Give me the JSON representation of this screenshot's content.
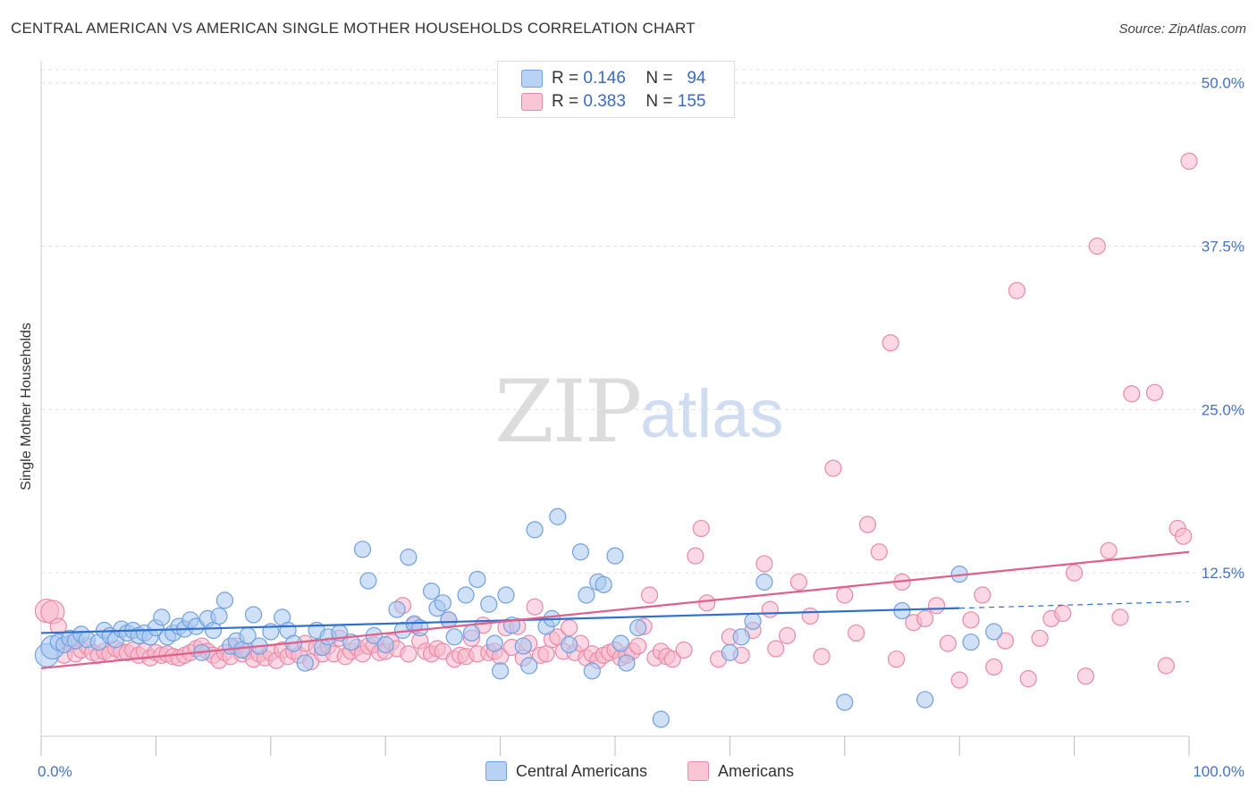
{
  "title": "CENTRAL AMERICAN VS AMERICAN SINGLE MOTHER HOUSEHOLDS CORRELATION CHART",
  "source": "Source: ZipAtlas.com",
  "watermark": {
    "zip": "ZIP",
    "atlas": "atlas"
  },
  "legend": {
    "r_label": "R =",
    "n_label": "N =",
    "rows": [
      {
        "r": "0.146",
        "n": "94",
        "color": "#a9c8f0"
      },
      {
        "r": "0.383",
        "n": "155",
        "color": "#f7b8cc"
      }
    ]
  },
  "bottom_legend": [
    {
      "label": "Central Americans",
      "color": "#a9c8f0"
    },
    {
      "label": "Americans",
      "color": "#f7b8cc"
    }
  ],
  "chart_data": {
    "type": "scatter",
    "title": "CENTRAL AMERICAN VS AMERICAN SINGLE MOTHER HOUSEHOLDS CORRELATION CHART",
    "xlabel": "",
    "ylabel": "Single Mother Households",
    "xlim": [
      0,
      100
    ],
    "ylim": [
      0,
      51
    ],
    "x_tick_labels": [
      "0.0%",
      "100.0%"
    ],
    "y_ticks": [
      12.5,
      25.0,
      37.5,
      50.0
    ],
    "y_tick_labels": [
      "12.5%",
      "25.0%",
      "37.5%",
      "50.0%"
    ],
    "grid": true,
    "series": [
      {
        "name": "Central Americans",
        "color": "#6fa0e0",
        "fill": "#a9c8f0",
        "trend": {
          "x": [
            0,
            80
          ],
          "y": [
            7.9,
            9.8
          ],
          "dashed_to": [
            100,
            10.3
          ],
          "color": "#2f6fce"
        },
        "points": [
          [
            0.5,
            6.2
          ],
          [
            1,
            6.8
          ],
          [
            1.5,
            7.2
          ],
          [
            2,
            7.0
          ],
          [
            2.5,
            7.5
          ],
          [
            3,
            7.3
          ],
          [
            3.5,
            7.8
          ],
          [
            4,
            7.4
          ],
          [
            5,
            7.2
          ],
          [
            5.5,
            8.1
          ],
          [
            6,
            7.7
          ],
          [
            6.5,
            7.4
          ],
          [
            7,
            8.2
          ],
          [
            7.5,
            7.9
          ],
          [
            8,
            8.1
          ],
          [
            8.5,
            7.7
          ],
          [
            9,
            7.9
          ],
          [
            9.5,
            7.6
          ],
          [
            10,
            8.3
          ],
          [
            10.5,
            9.1
          ],
          [
            11,
            7.6
          ],
          [
            11.5,
            7.9
          ],
          [
            12,
            8.4
          ],
          [
            12.5,
            8.2
          ],
          [
            13,
            8.9
          ],
          [
            13.5,
            8.4
          ],
          [
            14,
            6.4
          ],
          [
            14.5,
            9.0
          ],
          [
            15,
            8.1
          ],
          [
            15.5,
            9.2
          ],
          [
            16,
            10.4
          ],
          [
            16.5,
            6.9
          ],
          [
            17,
            7.3
          ],
          [
            17.5,
            6.6
          ],
          [
            18,
            7.7
          ],
          [
            18.5,
            9.3
          ],
          [
            19,
            6.9
          ],
          [
            20,
            8.0
          ],
          [
            21,
            9.1
          ],
          [
            21.5,
            8.1
          ],
          [
            22,
            7.1
          ],
          [
            23,
            5.6
          ],
          [
            24,
            8.1
          ],
          [
            24.5,
            6.8
          ],
          [
            25,
            7.6
          ],
          [
            26,
            7.9
          ],
          [
            27,
            7.2
          ],
          [
            28,
            14.3
          ],
          [
            28.5,
            11.9
          ],
          [
            29,
            7.7
          ],
          [
            30,
            7.0
          ],
          [
            31,
            9.7
          ],
          [
            31.5,
            8.1
          ],
          [
            32,
            13.7
          ],
          [
            32.5,
            8.6
          ],
          [
            33,
            8.3
          ],
          [
            34,
            11.1
          ],
          [
            34.5,
            9.8
          ],
          [
            35,
            10.2
          ],
          [
            35.5,
            8.9
          ],
          [
            36,
            7.6
          ],
          [
            37,
            10.8
          ],
          [
            37.5,
            7.9
          ],
          [
            38,
            12.0
          ],
          [
            39,
            10.1
          ],
          [
            39.5,
            7.1
          ],
          [
            40,
            5.0
          ],
          [
            40.5,
            10.8
          ],
          [
            41,
            8.5
          ],
          [
            42,
            6.9
          ],
          [
            42.5,
            5.4
          ],
          [
            43,
            15.8
          ],
          [
            44,
            8.4
          ],
          [
            44.5,
            9.0
          ],
          [
            45,
            16.8
          ],
          [
            46,
            7.0
          ],
          [
            47,
            14.1
          ],
          [
            47.5,
            10.8
          ],
          [
            48,
            5.0
          ],
          [
            48.5,
            11.8
          ],
          [
            49,
            11.6
          ],
          [
            50,
            13.8
          ],
          [
            50.5,
            7.1
          ],
          [
            51,
            5.6
          ],
          [
            52,
            8.3
          ],
          [
            54,
            1.3
          ],
          [
            60,
            6.4
          ],
          [
            61,
            7.6
          ],
          [
            62,
            8.8
          ],
          [
            63,
            11.8
          ],
          [
            70,
            2.6
          ],
          [
            75,
            9.6
          ],
          [
            77,
            2.8
          ],
          [
            80,
            12.4
          ],
          [
            81,
            7.2
          ],
          [
            83,
            8.0
          ]
        ]
      },
      {
        "name": "Americans",
        "color": "#e88aa8",
        "fill": "#f7b8cc",
        "trend": {
          "x": [
            0,
            100
          ],
          "y": [
            5.2,
            14.1
          ],
          "color": "#e0608a"
        },
        "points": [
          [
            0.5,
            9.6
          ],
          [
            1,
            9.5
          ],
          [
            1.5,
            8.4
          ],
          [
            2,
            6.2
          ],
          [
            2.5,
            7.1
          ],
          [
            3,
            6.3
          ],
          [
            3.5,
            6.6
          ],
          [
            4,
            6.9
          ],
          [
            4.5,
            6.4
          ],
          [
            5,
            6.2
          ],
          [
            5.5,
            6.5
          ],
          [
            6,
            6.3
          ],
          [
            6.5,
            6.7
          ],
          [
            7,
            6.5
          ],
          [
            7.5,
            6.4
          ],
          [
            8,
            6.6
          ],
          [
            8.5,
            6.2
          ],
          [
            9,
            6.5
          ],
          [
            9.5,
            6.0
          ],
          [
            10,
            6.4
          ],
          [
            10.5,
            6.2
          ],
          [
            11,
            6.3
          ],
          [
            11.5,
            6.1
          ],
          [
            12,
            6.0
          ],
          [
            12.5,
            6.2
          ],
          [
            13,
            6.4
          ],
          [
            13.5,
            6.7
          ],
          [
            14,
            6.9
          ],
          [
            14.5,
            6.5
          ],
          [
            15,
            6.2
          ],
          [
            15.5,
            5.8
          ],
          [
            16,
            6.4
          ],
          [
            16.5,
            6.1
          ],
          [
            17,
            6.9
          ],
          [
            17.5,
            6.3
          ],
          [
            18,
            6.5
          ],
          [
            18.5,
            5.9
          ],
          [
            19,
            6.3
          ],
          [
            19.5,
            6.0
          ],
          [
            20,
            6.4
          ],
          [
            20.5,
            5.8
          ],
          [
            21,
            6.6
          ],
          [
            21.5,
            6.1
          ],
          [
            22,
            6.5
          ],
          [
            22.5,
            6.2
          ],
          [
            23,
            7.1
          ],
          [
            23.5,
            5.7
          ],
          [
            24,
            6.8
          ],
          [
            24.5,
            6.3
          ],
          [
            25,
            6.9
          ],
          [
            25.5,
            6.3
          ],
          [
            26,
            7.5
          ],
          [
            26.5,
            6.1
          ],
          [
            27,
            6.5
          ],
          [
            27.5,
            6.8
          ],
          [
            28,
            6.3
          ],
          [
            28.5,
            6.9
          ],
          [
            29,
            7.0
          ],
          [
            29.5,
            6.4
          ],
          [
            30,
            6.5
          ],
          [
            30.5,
            7.2
          ],
          [
            31,
            6.7
          ],
          [
            31.5,
            10.0
          ],
          [
            32,
            6.3
          ],
          [
            32.5,
            8.5
          ],
          [
            33,
            7.3
          ],
          [
            33.5,
            6.5
          ],
          [
            34,
            6.3
          ],
          [
            34.5,
            6.7
          ],
          [
            35,
            6.5
          ],
          [
            35.5,
            8.9
          ],
          [
            36,
            5.9
          ],
          [
            36.5,
            6.2
          ],
          [
            37,
            6.1
          ],
          [
            37.5,
            7.5
          ],
          [
            38,
            6.3
          ],
          [
            38.5,
            8.5
          ],
          [
            39,
            6.4
          ],
          [
            39.5,
            6.5
          ],
          [
            40,
            6.1
          ],
          [
            40.5,
            8.3
          ],
          [
            41,
            6.8
          ],
          [
            41.5,
            8.4
          ],
          [
            42,
            6.0
          ],
          [
            42.5,
            7.1
          ],
          [
            43,
            9.9
          ],
          [
            43.5,
            6.2
          ],
          [
            44,
            6.3
          ],
          [
            44.5,
            7.4
          ],
          [
            45,
            7.6
          ],
          [
            45.5,
            6.5
          ],
          [
            46,
            8.3
          ],
          [
            46.5,
            6.4
          ],
          [
            47,
            7.1
          ],
          [
            47.5,
            6.0
          ],
          [
            48,
            6.3
          ],
          [
            48.5,
            5.8
          ],
          [
            49,
            6.2
          ],
          [
            49.5,
            6.4
          ],
          [
            50,
            6.6
          ],
          [
            50.5,
            6.0
          ],
          [
            51,
            6.2
          ],
          [
            51.5,
            6.5
          ],
          [
            52,
            6.9
          ],
          [
            52.5,
            8.4
          ],
          [
            53,
            10.8
          ],
          [
            53.5,
            6.0
          ],
          [
            54,
            6.5
          ],
          [
            54.5,
            6.1
          ],
          [
            55,
            5.9
          ],
          [
            56,
            6.6
          ],
          [
            57,
            13.8
          ],
          [
            57.5,
            15.9
          ],
          [
            58,
            10.2
          ],
          [
            59,
            5.9
          ],
          [
            60,
            7.6
          ],
          [
            61,
            6.2
          ],
          [
            62,
            8.1
          ],
          [
            63,
            13.2
          ],
          [
            63.5,
            9.7
          ],
          [
            64,
            6.7
          ],
          [
            65,
            7.7
          ],
          [
            66,
            11.8
          ],
          [
            67,
            9.2
          ],
          [
            68,
            6.1
          ],
          [
            69,
            20.5
          ],
          [
            70,
            10.8
          ],
          [
            71,
            7.9
          ],
          [
            72,
            16.2
          ],
          [
            73,
            14.1
          ],
          [
            74,
            30.1
          ],
          [
            74.5,
            5.9
          ],
          [
            75,
            11.8
          ],
          [
            76,
            8.7
          ],
          [
            77,
            9.0
          ],
          [
            78,
            10.0
          ],
          [
            79,
            7.1
          ],
          [
            80,
            4.3
          ],
          [
            81,
            8.9
          ],
          [
            82,
            10.8
          ],
          [
            83,
            5.3
          ],
          [
            84,
            7.3
          ],
          [
            85,
            34.1
          ],
          [
            86,
            4.4
          ],
          [
            87,
            7.5
          ],
          [
            88,
            9.0
          ],
          [
            89,
            9.4
          ],
          [
            90,
            12.5
          ],
          [
            91,
            4.6
          ],
          [
            92,
            37.5
          ],
          [
            93,
            14.2
          ],
          [
            94,
            9.1
          ],
          [
            95,
            26.2
          ],
          [
            97,
            26.3
          ],
          [
            98,
            5.4
          ],
          [
            99,
            15.9
          ],
          [
            99.5,
            15.3
          ],
          [
            100,
            44.0
          ]
        ]
      }
    ]
  }
}
